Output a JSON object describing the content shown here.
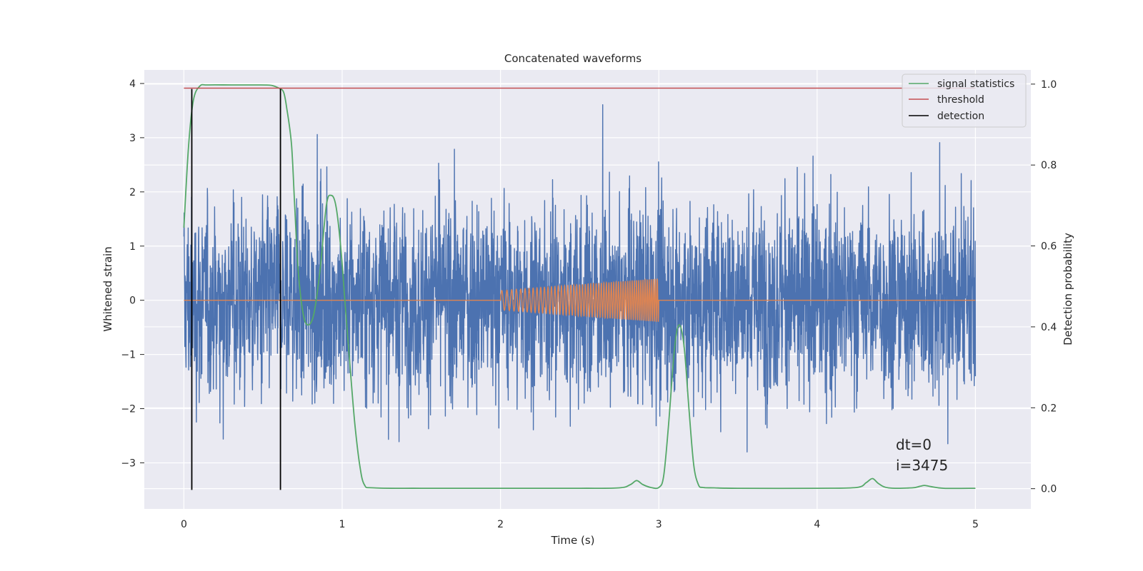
{
  "chart_data": {
    "type": "line",
    "title": "Concatenated waveforms",
    "xlabel": "Time (s)",
    "ylabel": "Whitened strain",
    "ylabel_right": "Detection probability",
    "xlim": [
      -0.25,
      5.35
    ],
    "ylim": [
      -3.85,
      4.25
    ],
    "ylim_right": [
      -0.05,
      1.035
    ],
    "x_ticks": [
      0,
      1,
      2,
      3,
      4,
      5
    ],
    "y_ticks": [
      -3,
      -2,
      -1,
      0,
      1,
      2,
      3,
      4
    ],
    "y_ticks_right": [
      0.0,
      0.2,
      0.4,
      0.6,
      0.8,
      1.0
    ],
    "x_tick_labels": [
      "0",
      "1",
      "2",
      "3",
      "4",
      "5"
    ],
    "y_tick_labels": [
      "−3",
      "−2",
      "−1",
      "0",
      "1",
      "2",
      "3",
      "4"
    ],
    "y_tick_labels_right": [
      "0.0",
      "0.2",
      "0.4",
      "0.6",
      "0.8",
      "1.0"
    ],
    "grid": true,
    "legend_position": "top-right",
    "colors": {
      "background": "#EAEAF2",
      "grid": "#FFFFFF",
      "strain": "#4C72B0",
      "injection": "#DD8452",
      "signal_statistics": "#55A868",
      "threshold": "#C44E52",
      "detection": "#000000"
    },
    "series": [
      {
        "name": "signal statistics",
        "axis": "right",
        "x": [
          0,
          0.03,
          0.06,
          0.1,
          0.15,
          0.3,
          0.45,
          0.55,
          0.6,
          0.63,
          0.65,
          0.68,
          0.7,
          0.72,
          0.75,
          0.78,
          0.82,
          0.86,
          0.9,
          0.93,
          0.96,
          0.99,
          1.02,
          1.05,
          1.08,
          1.11,
          1.14,
          1.2,
          1.5,
          2.0,
          2.5,
          2.75,
          2.82,
          2.86,
          2.9,
          2.95,
          3.0,
          3.03,
          3.06,
          3.1,
          3.13,
          3.16,
          3.19,
          3.22,
          3.25,
          3.28,
          3.35,
          3.5,
          4.0,
          4.25,
          4.31,
          4.35,
          4.39,
          4.45,
          4.6,
          4.65,
          4.68,
          4.72,
          4.8,
          5.0
        ],
        "y": [
          0.645,
          0.85,
          0.96,
          0.995,
          0.998,
          0.998,
          0.998,
          0.997,
          0.99,
          0.98,
          0.94,
          0.85,
          0.7,
          0.55,
          0.44,
          0.405,
          0.43,
          0.54,
          0.7,
          0.725,
          0.7,
          0.6,
          0.45,
          0.3,
          0.16,
          0.06,
          0.01,
          0.002,
          0.001,
          0.001,
          0.001,
          0.002,
          0.01,
          0.02,
          0.01,
          0.003,
          0.003,
          0.03,
          0.15,
          0.35,
          0.405,
          0.35,
          0.2,
          0.06,
          0.01,
          0.003,
          0.002,
          0.001,
          0.001,
          0.003,
          0.015,
          0.025,
          0.012,
          0.002,
          0.002,
          0.006,
          0.008,
          0.005,
          0.001,
          0.001
        ]
      },
      {
        "name": "threshold",
        "axis": "right",
        "x": [
          0,
          5
        ],
        "y": [
          0.99,
          0.99
        ]
      },
      {
        "name": "detection",
        "axis": "left",
        "x": [
          0.05,
          0.61
        ],
        "y_range": [
          -3.5,
          3.9
        ]
      }
    ],
    "strain_series": {
      "axis": "left",
      "x_range": [
        0,
        5
      ],
      "amplitude": 4
    },
    "injection_series": {
      "axis": "left",
      "x_range": [
        2,
        3
      ],
      "amplitude_range": [
        0.18,
        0.4
      ]
    },
    "annotations": [
      "dt=0",
      "i=3475"
    ]
  }
}
